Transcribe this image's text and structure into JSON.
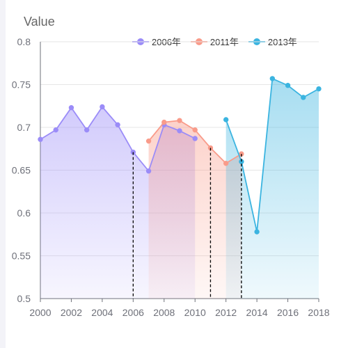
{
  "chart_data": {
    "type": "area",
    "ylabel": "Value",
    "ylim": [
      0.5,
      0.8
    ],
    "xlim": [
      2000,
      2018
    ],
    "yticks": [
      "0.5",
      "0.55",
      "0.6",
      "0.65",
      "0.7",
      "0.75",
      "0.8"
    ],
    "xticks": [
      "2000",
      "2002",
      "2004",
      "2006",
      "2008",
      "2010",
      "2012",
      "2014",
      "2016",
      "2018"
    ],
    "grid": "horizontal",
    "legend_position": "top-right",
    "colors": {
      "2006年": "#9b8cf8",
      "2011年": "#f99b8a",
      "2013年": "#3bb4e0"
    },
    "series": [
      {
        "name": "2006年",
        "x": [
          2000,
          2001,
          2002,
          2003,
          2004,
          2005,
          2006,
          2007,
          2008,
          2009,
          2010
        ],
        "values": [
          0.686,
          0.697,
          0.723,
          0.697,
          0.724,
          0.703,
          0.671,
          0.649,
          0.703,
          0.696,
          0.687
        ]
      },
      {
        "name": "2011年",
        "x": [
          2007,
          2008,
          2009,
          2010,
          2011,
          2012,
          2013
        ],
        "values": [
          0.684,
          0.706,
          0.708,
          0.697,
          0.676,
          0.658,
          0.669
        ]
      },
      {
        "name": "2013年",
        "x": [
          2012,
          2013,
          2014,
          2015,
          2016,
          2017,
          2018
        ],
        "values": [
          0.709,
          0.66,
          0.578,
          0.757,
          0.749,
          0.735,
          0.745
        ]
      }
    ],
    "markers": [
      2006,
      2011,
      2013
    ]
  }
}
